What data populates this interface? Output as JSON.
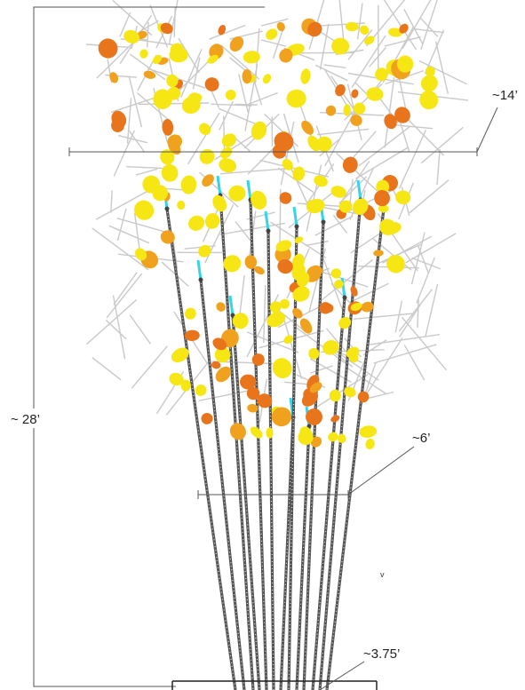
{
  "dimensions": {
    "height_label": "~ 28’",
    "canopy_width_label": "~14’",
    "mid_width_label": "~6’",
    "base_width_label": "~3.75’"
  },
  "marker_label": "v",
  "colors": {
    "leaf_yellow": "#f5e614",
    "leaf_orange": "#f0a21e",
    "leaf_red_orange": "#e8741c",
    "stalk": "#555555",
    "tip_cyan": "#35d4e6",
    "twig": "#c9c9c9",
    "dimension_line": "#555555"
  }
}
